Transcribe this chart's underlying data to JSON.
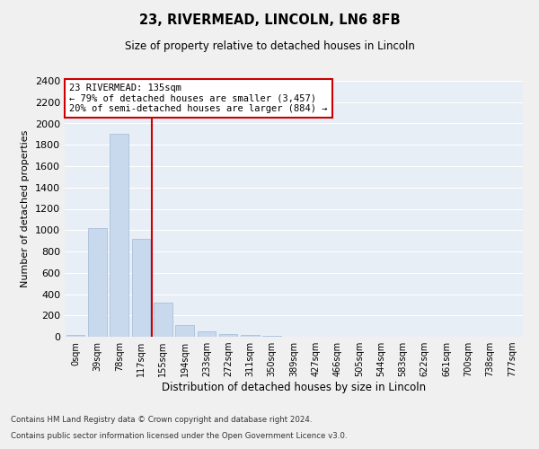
{
  "title1": "23, RIVERMEAD, LINCOLN, LN6 8FB",
  "title2": "Size of property relative to detached houses in Lincoln",
  "xlabel": "Distribution of detached houses by size in Lincoln",
  "ylabel": "Number of detached properties",
  "bar_labels": [
    "0sqm",
    "39sqm",
    "78sqm",
    "117sqm",
    "155sqm",
    "194sqm",
    "233sqm",
    "272sqm",
    "311sqm",
    "350sqm",
    "389sqm",
    "427sqm",
    "466sqm",
    "505sqm",
    "544sqm",
    "583sqm",
    "622sqm",
    "661sqm",
    "700sqm",
    "738sqm",
    "777sqm"
  ],
  "bar_values": [
    20,
    1020,
    1900,
    920,
    320,
    110,
    50,
    25,
    15,
    5,
    2,
    0,
    0,
    0,
    0,
    0,
    0,
    0,
    0,
    0,
    0
  ],
  "bar_color": "#c9d9ed",
  "bar_edge_color": "#a0b8d8",
  "vline_color": "#cc0000",
  "annotation_text": "23 RIVERMEAD: 135sqm\n← 79% of detached houses are smaller (3,457)\n20% of semi-detached houses are larger (884) →",
  "annotation_box_color": "#ffffff",
  "annotation_box_edge": "#cc0000",
  "ylim": [
    0,
    2400
  ],
  "yticks": [
    0,
    200,
    400,
    600,
    800,
    1000,
    1200,
    1400,
    1600,
    1800,
    2000,
    2200,
    2400
  ],
  "background_color": "#e8eef5",
  "fig_background": "#f0f0f0",
  "footer1": "Contains HM Land Registry data © Crown copyright and database right 2024.",
  "footer2": "Contains public sector information licensed under the Open Government Licence v3.0."
}
